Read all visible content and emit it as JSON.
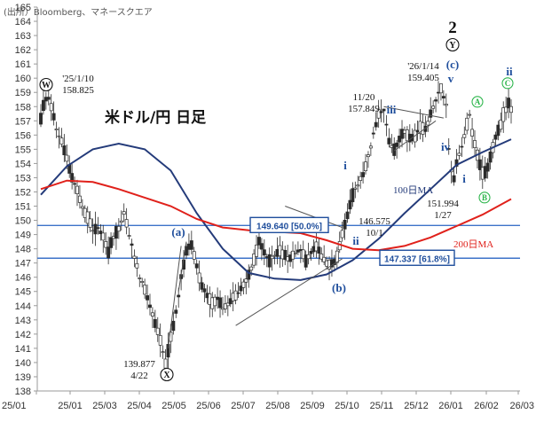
{
  "chart_data": {
    "type": "candlestick",
    "title": "米ドル/円 日足",
    "source": "(出所）Bloomberg、マネースクエア",
    "y_ticks": [
      138,
      139,
      140,
      141,
      142,
      143,
      144,
      145,
      146,
      147,
      148,
      149,
      150,
      151,
      152,
      153,
      154,
      155,
      156,
      157,
      158,
      159,
      160,
      161,
      162,
      163,
      164,
      165
    ],
    "ylim": [
      138,
      165
    ],
    "x_ticks": [
      "25/01",
      "25/01",
      "25/03",
      "25/04",
      "25/05",
      "25/06",
      "25/07",
      "25/08",
      "25/09",
      "25/10",
      "25/11",
      "25/12",
      "26/01",
      "26/02",
      "26/03"
    ],
    "price_path": [
      [
        0,
        157.2
      ],
      [
        2,
        158.0
      ],
      [
        5,
        158.825
      ],
      [
        8,
        158.1
      ],
      [
        12,
        156.5
      ],
      [
        16,
        155.5
      ],
      [
        20,
        154.3
      ],
      [
        24,
        153.0
      ],
      [
        28,
        152.2
      ],
      [
        32,
        151.0
      ],
      [
        36,
        150.2
      ],
      [
        40,
        149.3
      ],
      [
        44,
        149.5
      ],
      [
        48,
        148.8
      ],
      [
        52,
        147.8
      ],
      [
        56,
        148.9
      ],
      [
        60,
        149.5
      ],
      [
        64,
        150.5
      ],
      [
        68,
        149.0
      ],
      [
        72,
        147.5
      ],
      [
        76,
        146.0
      ],
      [
        80,
        145.2
      ],
      [
        84,
        144.0
      ],
      [
        88,
        142.8
      ],
      [
        92,
        141.5
      ],
      [
        96,
        139.877
      ],
      [
        100,
        141.8
      ],
      [
        104,
        143.5
      ],
      [
        108,
        146.0
      ],
      [
        112,
        147.8
      ],
      [
        116,
        148.3
      ],
      [
        120,
        146.8
      ],
      [
        124,
        145.3
      ],
      [
        128,
        144.7
      ],
      [
        132,
        144.2
      ],
      [
        136,
        144.5
      ],
      [
        140,
        143.8
      ],
      [
        144,
        144.2
      ],
      [
        148,
        144.6
      ],
      [
        152,
        145.0
      ],
      [
        156,
        145.5
      ],
      [
        160,
        146.2
      ],
      [
        164,
        147.2
      ],
      [
        168,
        148.5
      ],
      [
        172,
        147.8
      ],
      [
        176,
        147.2
      ],
      [
        180,
        147.6
      ],
      [
        184,
        147.9
      ],
      [
        188,
        147.5
      ],
      [
        192,
        147.3
      ],
      [
        196,
        147.7
      ],
      [
        200,
        148.0
      ],
      [
        204,
        147.2
      ],
      [
        208,
        147.8
      ],
      [
        212,
        148.2
      ],
      [
        216,
        147.5
      ],
      [
        220,
        147.0
      ],
      [
        224,
        146.9
      ],
      [
        228,
        147.4
      ],
      [
        232,
        149.0
      ],
      [
        236,
        150.3
      ],
      [
        240,
        151.8
      ],
      [
        244,
        152.5
      ],
      [
        248,
        153.3
      ],
      [
        252,
        154.5
      ],
      [
        256,
        156.0
      ],
      [
        260,
        157.5
      ],
      [
        264,
        157.849
      ],
      [
        268,
        155.5
      ],
      [
        272,
        155.0
      ],
      [
        276,
        155.8
      ],
      [
        280,
        156.3
      ],
      [
        284,
        155.7
      ],
      [
        288,
        155.9
      ],
      [
        292,
        156.5
      ],
      [
        296,
        156.4
      ],
      [
        300,
        157.4
      ],
      [
        304,
        158.5
      ],
      [
        308,
        159.405
      ],
      [
        312,
        158.1
      ],
      [
        314,
        155.0
      ],
      [
        316,
        153.6
      ],
      [
        318,
        152.8
      ],
      [
        320,
        154.0
      ],
      [
        324,
        155.3
      ],
      [
        328,
        156.7
      ],
      [
        330,
        157.4
      ],
      [
        332,
        156.2
      ],
      [
        336,
        154.6
      ],
      [
        340,
        153.3
      ],
      [
        344,
        153.6
      ],
      [
        348,
        155.2
      ],
      [
        352,
        156.3
      ],
      [
        356,
        157.4
      ],
      [
        360,
        158.2
      ],
      [
        362,
        157.9
      ]
    ],
    "series": [
      {
        "name": "100日MA",
        "color": "#243B7A",
        "points": [
          [
            0,
            151.8
          ],
          [
            20,
            153.8
          ],
          [
            40,
            155.0
          ],
          [
            60,
            155.4
          ],
          [
            80,
            155.0
          ],
          [
            100,
            153.5
          ],
          [
            120,
            150.5
          ],
          [
            140,
            148.0
          ],
          [
            160,
            146.3
          ],
          [
            180,
            145.9
          ],
          [
            200,
            145.8
          ],
          [
            220,
            146.2
          ],
          [
            240,
            147.2
          ],
          [
            260,
            148.7
          ],
          [
            280,
            150.5
          ],
          [
            300,
            152.2
          ],
          [
            320,
            153.9
          ],
          [
            340,
            154.8
          ],
          [
            362,
            155.7
          ]
        ]
      },
      {
        "name": "200日MA",
        "color": "#E0211B",
        "points": [
          [
            0,
            152.2
          ],
          [
            20,
            152.8
          ],
          [
            40,
            152.7
          ],
          [
            60,
            152.2
          ],
          [
            80,
            151.6
          ],
          [
            100,
            151.0
          ],
          [
            120,
            150.1
          ],
          [
            140,
            149.5
          ],
          [
            160,
            149.3
          ],
          [
            180,
            149.2
          ],
          [
            200,
            149.1
          ],
          [
            220,
            148.6
          ],
          [
            240,
            148.0
          ],
          [
            260,
            147.9
          ],
          [
            280,
            148.2
          ],
          [
            300,
            148.8
          ],
          [
            320,
            149.6
          ],
          [
            340,
            150.4
          ],
          [
            362,
            151.5
          ]
        ]
      }
    ],
    "fib_levels": [
      {
        "value": 149.64,
        "label": "149.640 [50.0%]"
      },
      {
        "value": 147.337,
        "label": "147.337 [61.8%]"
      }
    ],
    "price_annotations": [
      {
        "lines": [
          "'25/1/10",
          "158.825"
        ]
      },
      {
        "lines": [
          "139.877",
          "4/22"
        ]
      },
      {
        "lines": [
          "11/20",
          "157.849"
        ]
      },
      {
        "lines": [
          "'26/1/14",
          "159.405"
        ]
      },
      {
        "lines": [
          "146.575",
          "10/1"
        ]
      },
      {
        "lines": [
          "151.994",
          "1/27"
        ]
      }
    ],
    "wave_labels": [
      "W",
      "X",
      "Y",
      "2",
      "(a)",
      "(b)",
      "(c)",
      "i",
      "ii",
      "iii",
      "iv",
      "v",
      "i",
      "ii",
      "A",
      "B",
      "C"
    ],
    "ma_labels": [
      "100日MA",
      "200日MA"
    ],
    "colors": {
      "candle": "#2b2b2b",
      "fib_line": "#3D73C9",
      "fib_box": "#1F4E9C",
      "wave_blue": "#1F4E9C",
      "wave_green": "#2BB54A",
      "trendline": "#555555"
    }
  }
}
